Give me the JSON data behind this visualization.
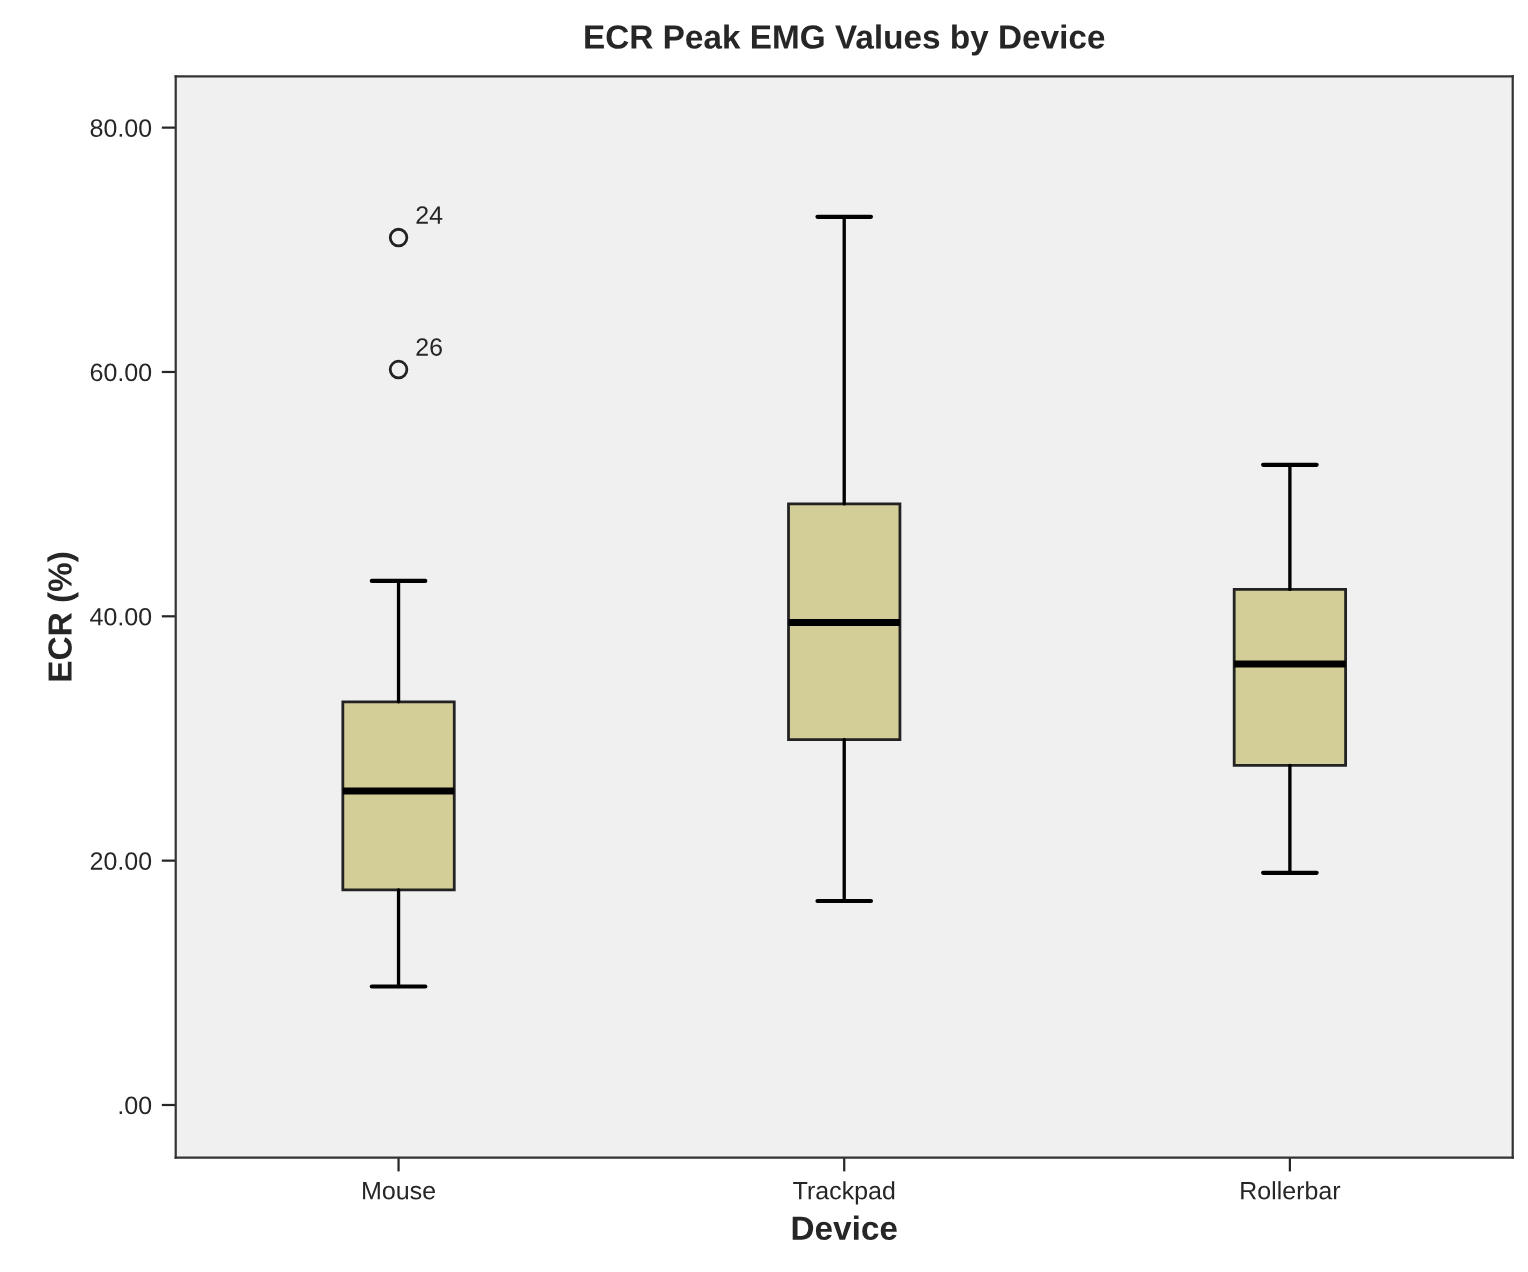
{
  "chart_data": {
    "type": "box",
    "title": "ECR Peak EMG Values by Device",
    "xlabel": "Device",
    "ylabel": "ECR (%)",
    "categories": [
      "Mouse",
      "Trackpad",
      "Rollerbar"
    ],
    "boxes": [
      {
        "low": 9.7,
        "q1": 17.6,
        "median": 25.7,
        "q3": 33.0,
        "high": 42.9,
        "outliers": [
          71.0,
          60.2
        ]
      },
      {
        "low": 16.7,
        "q1": 29.9,
        "median": 39.5,
        "q3": 49.2,
        "high": 72.7
      },
      {
        "low": 19.0,
        "q1": 27.8,
        "median": 36.1,
        "q3": 42.2,
        "high": 52.4
      }
    ],
    "color": "#d3cd97",
    "ylim": [
      -4.3,
      84.2
    ],
    "yticks": [
      {
        "value": 0,
        "label": ".00"
      },
      {
        "value": 20,
        "label": "20.00"
      },
      {
        "value": 40,
        "label": "40.00"
      },
      {
        "value": 60,
        "label": "60.00"
      },
      {
        "value": 80,
        "label": "80.00"
      }
    ],
    "annotations": [
      "24",
      "26"
    ],
    "grid": false
  }
}
